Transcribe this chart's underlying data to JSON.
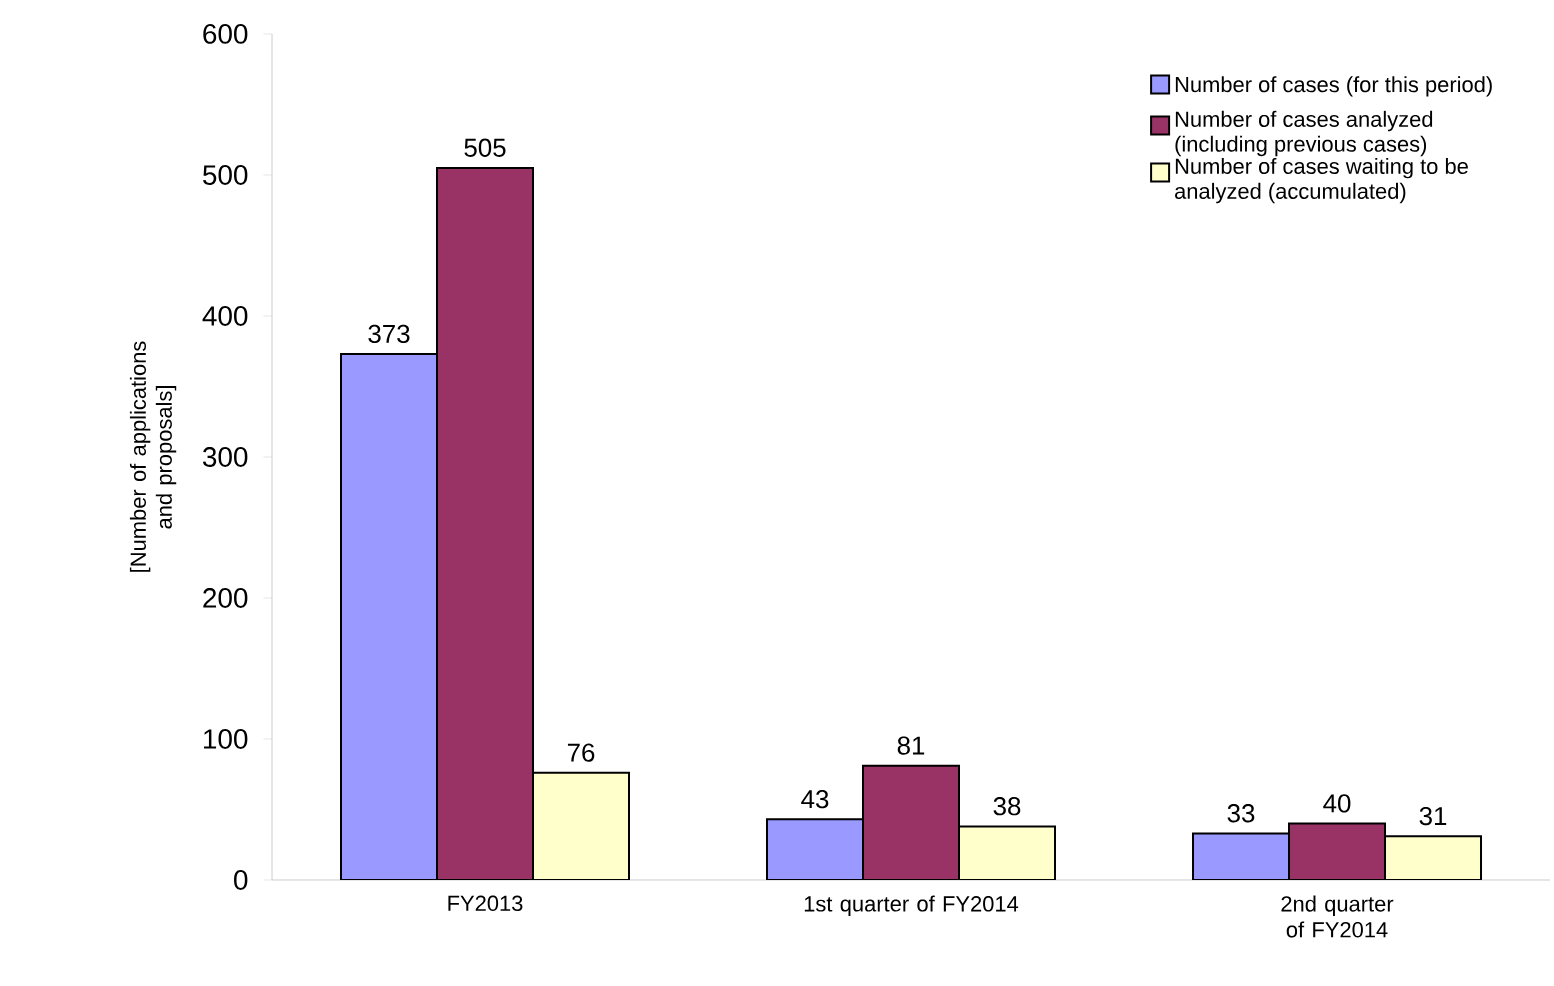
{
  "chart_data": {
    "type": "bar",
    "ylabel": "[Number of applications and proposals]",
    "categories": [
      "FY2013",
      "1st quarter of FY2014",
      "2nd quarter of FY2014"
    ],
    "series": [
      {
        "name": "Number of cases (for this period)",
        "color": "#9999ff",
        "values": [
          373,
          43,
          33
        ]
      },
      {
        "name": "Number of cases analyzed (including previous cases)",
        "color": "#993366",
        "values": [
          505,
          81,
          40
        ]
      },
      {
        "name": "Number of cases waiting to be analyzed (accumulated)",
        "color": "#ffffcc",
        "values": [
          76,
          38,
          31
        ]
      }
    ],
    "ylim": [
      0,
      600
    ],
    "yticks": [
      0,
      100,
      200,
      300,
      400,
      500,
      600
    ],
    "data_labels": true,
    "legend": "top right",
    "grid": false
  }
}
